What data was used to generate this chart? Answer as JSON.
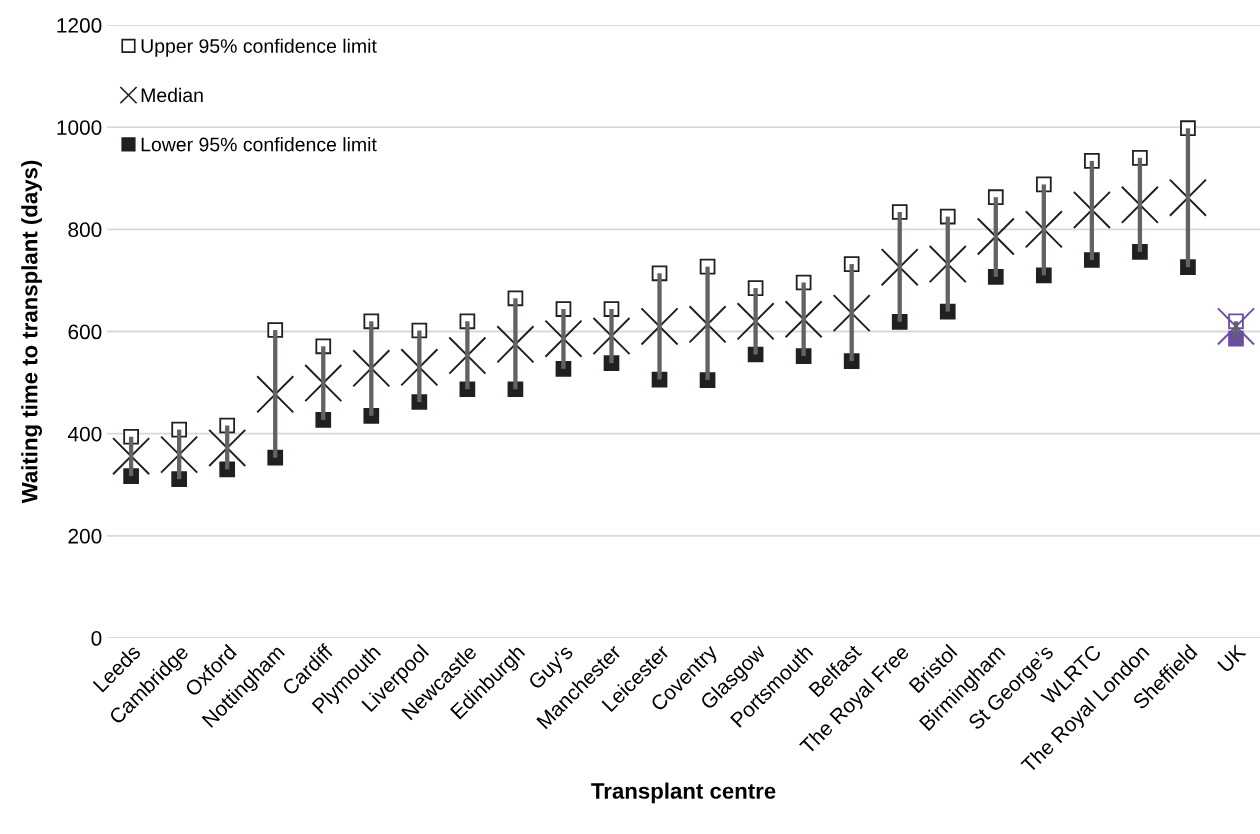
{
  "chart_data": {
    "type": "scatter",
    "xlabel": "Transplant centre",
    "ylabel": "Waiting time to transplant (days)",
    "categories": [
      "Leeds",
      "Cambridge",
      "Oxford",
      "Nottingham",
      "Cardiff",
      "Plymouth",
      "Liverpool",
      "Newcastle",
      "Edinburgh",
      "Guy's",
      "Manchester",
      "Leicester",
      "Coventry",
      "Glasgow",
      "Portsmouth",
      "Belfast",
      "The Royal Free",
      "Bristol",
      "Birmingham",
      "St George’s",
      "WLRTC",
      "The Royal London",
      "Sheffield",
      "UK"
    ],
    "series": [
      {
        "name": "Upper 95% confidence limit",
        "marker": "square",
        "color": "#ffffff",
        "colors": [
          "#ffffff",
          "#ffffff",
          "#ffffff",
          "#ffffff",
          "#ffffff",
          "#ffffff",
          "#ffffff",
          "#ffffff",
          "#ffffff",
          "#ffffff",
          "#ffffff",
          "#ffffff",
          "#ffffff",
          "#ffffff",
          "#ffffff",
          "#ffffff",
          "#ffffff",
          "#ffffff",
          "#ffffff",
          "#ffffff",
          "#ffffff",
          "#ffffff",
          "#ffffff",
          "#6a4fa0"
        ],
        "values": [
          394,
          408,
          416,
          603,
          571,
          620,
          602,
          620,
          665,
          644,
          644,
          714,
          727,
          685,
          696,
          732,
          834,
          825,
          863,
          888,
          934,
          940,
          998,
          620
        ]
      },
      {
        "name": "Median",
        "marker": "cross",
        "color": "#231f20",
        "colors": [
          "#231f20",
          "#231f20",
          "#231f20",
          "#231f20",
          "#231f20",
          "#231f20",
          "#231f20",
          "#231f20",
          "#231f20",
          "#231f20",
          "#231f20",
          "#231f20",
          "#231f20",
          "#231f20",
          "#231f20",
          "#231f20",
          "#231f20",
          "#231f20",
          "#231f20",
          "#231f20",
          "#231f20",
          "#231f20",
          "#231f20",
          "#6a4fa0"
        ],
        "values": [
          356,
          359,
          372,
          477,
          499,
          528,
          530,
          553,
          575,
          586,
          591,
          610,
          614,
          620,
          624,
          636,
          726,
          732,
          786,
          800,
          838,
          848,
          862,
          610
        ]
      },
      {
        "name": "Lower 95% confidence limit",
        "marker": "square",
        "color": "#231f20",
        "colors": [
          "#231f20",
          "#231f20",
          "#231f20",
          "#231f20",
          "#231f20",
          "#231f20",
          "#231f20",
          "#231f20",
          "#231f20",
          "#231f20",
          "#231f20",
          "#231f20",
          "#231f20",
          "#231f20",
          "#231f20",
          "#231f20",
          "#231f20",
          "#231f20",
          "#231f20",
          "#231f20",
          "#231f20",
          "#231f20",
          "#231f20",
          "#6a4fa0"
        ],
        "values": [
          317,
          311,
          330,
          353,
          427,
          435,
          462,
          487,
          487,
          527,
          538,
          506,
          505,
          555,
          552,
          542,
          619,
          639,
          707,
          710,
          740,
          756,
          726,
          586
        ]
      },
      {
        "type": "bar",
        "color": "#5f6566",
        "base": [
          317,
          311,
          330,
          353,
          427,
          435,
          462,
          487,
          487,
          527,
          538,
          506,
          505,
          555,
          552,
          542,
          619,
          639,
          707,
          710,
          740,
          756,
          726,
          586
        ],
        "values": [
          77,
          97,
          86,
          250,
          144,
          185,
          140,
          133,
          178,
          117,
          106,
          208,
          222,
          130,
          144,
          190,
          215,
          186,
          156,
          178,
          194,
          184,
          272,
          34
        ]
      }
    ],
    "ylim": [
      0,
      1200
    ],
    "yticks": [
      0,
      200,
      400,
      600,
      800,
      1000,
      1200
    ],
    "grid": "y",
    "legend": "top left"
  }
}
